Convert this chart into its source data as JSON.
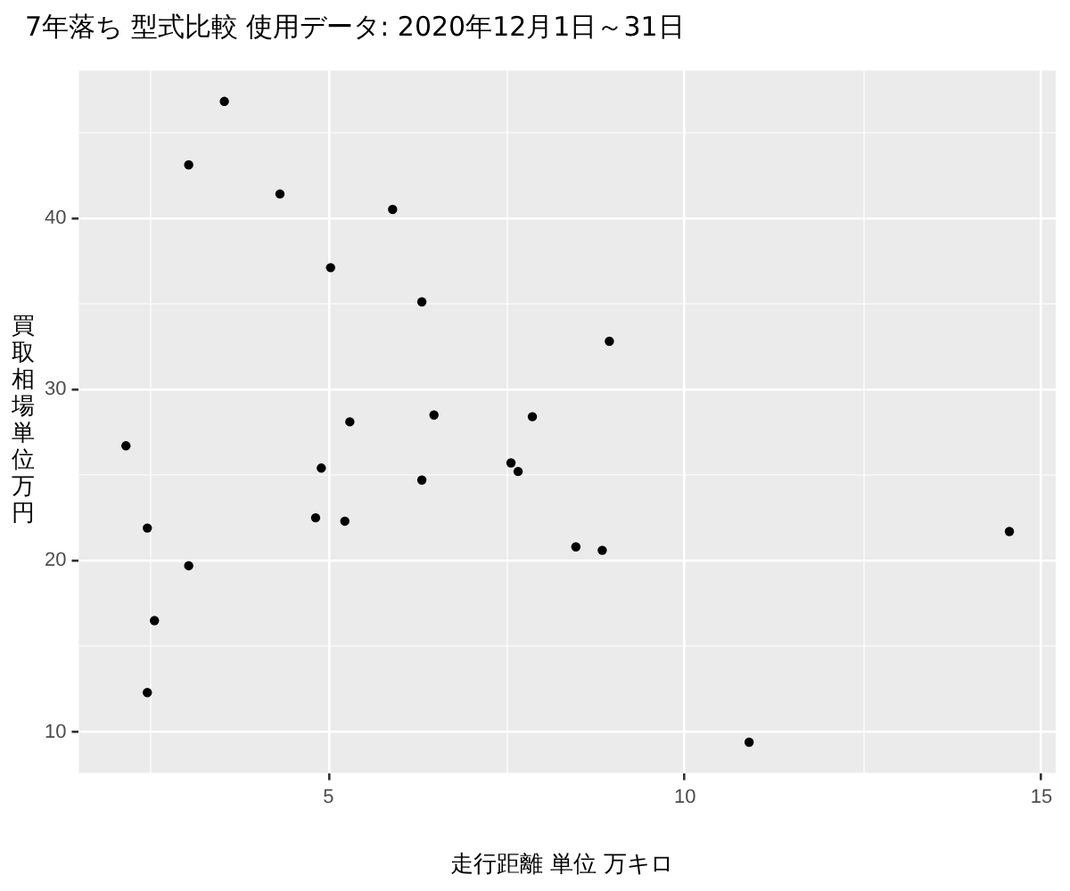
{
  "chart_data": {
    "type": "scatter",
    "title": "7年落ち 型式比較 使用データ: 2020年12月1日～31日",
    "xlabel": "走行距離 単位 万キロ",
    "ylabel": "買取相場単位万円",
    "x": [
      2.16,
      2.46,
      2.56,
      2.46,
      3.04,
      3.04,
      3.54,
      4.32,
      5.03,
      4.82,
      4.9,
      5.23,
      5.3,
      5.9,
      6.31,
      6.31,
      6.48,
      7.86,
      7.56,
      7.66,
      8.47,
      8.84,
      8.94,
      10.9,
      14.55
    ],
    "series": [
      {
        "color": "#000000",
        "values": [
          26.7,
          21.9,
          16.5,
          12.3,
          19.7,
          43.1,
          46.8,
          41.4,
          37.1,
          22.5,
          25.4,
          22.3,
          28.1,
          40.5,
          35.1,
          24.7,
          28.5,
          28.4,
          25.7,
          25.2,
          20.8,
          20.6,
          32.8,
          9.4,
          21.7
        ]
      }
    ],
    "xlim": [
      1.5,
      15.2
    ],
    "ylim": [
      7.6,
      48.6
    ],
    "xticks": [
      {
        "value": 2.5,
        "label": null
      },
      5,
      {
        "value": 7.5,
        "label": null
      },
      10,
      {
        "value": 12.5,
        "label": null
      },
      15
    ],
    "yticks": [
      10,
      {
        "value": 15,
        "label": null
      },
      20,
      {
        "value": 25,
        "label": null
      },
      30,
      {
        "value": 35,
        "label": null
      },
      40,
      {
        "value": 45,
        "label": null
      }
    ],
    "grid": true,
    "legend": false,
    "marker": "circle"
  }
}
